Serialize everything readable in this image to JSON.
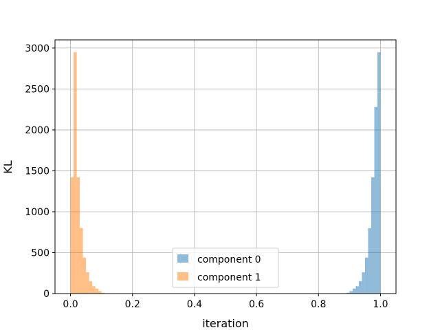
{
  "chart_data": {
    "type": "bar",
    "title": "",
    "xlabel": "iteration",
    "ylabel": "KL",
    "xlim": [
      -0.05,
      1.05
    ],
    "ylim": [
      0,
      3100
    ],
    "xticks": [
      "0.0",
      "0.2",
      "0.4",
      "0.6",
      "0.8",
      "1.0"
    ],
    "xtick_values": [
      0.0,
      0.2,
      0.4,
      0.6,
      0.8,
      1.0
    ],
    "yticks": [
      "0",
      "500",
      "1000",
      "1500",
      "2000",
      "2500",
      "3000"
    ],
    "ytick_values": [
      0,
      500,
      1000,
      1500,
      2000,
      2500,
      3000
    ],
    "grid": true,
    "legend_position": "lower-center",
    "bin_width": 0.01,
    "series": [
      {
        "name": "component 0",
        "color": "#1f77b4",
        "opacity": 0.5,
        "bin_starts": [
          0.89,
          0.9,
          0.91,
          0.92,
          0.93,
          0.94,
          0.95,
          0.96,
          0.97,
          0.98,
          0.99
        ],
        "values": [
          10,
          30,
          60,
          90,
          150,
          260,
          440,
          800,
          1420,
          2280,
          2950
        ]
      },
      {
        "name": "component 1",
        "color": "#ff7f0e",
        "opacity": 0.5,
        "bin_starts": [
          0.0,
          0.01,
          0.02,
          0.03,
          0.04,
          0.05,
          0.06,
          0.07,
          0.08,
          0.09,
          0.1
        ],
        "values": [
          1420,
          2950,
          1420,
          800,
          440,
          260,
          150,
          90,
          60,
          30,
          10
        ]
      }
    ]
  },
  "colors": {
    "grid": "#b0b0b0",
    "axes": "#000000"
  }
}
